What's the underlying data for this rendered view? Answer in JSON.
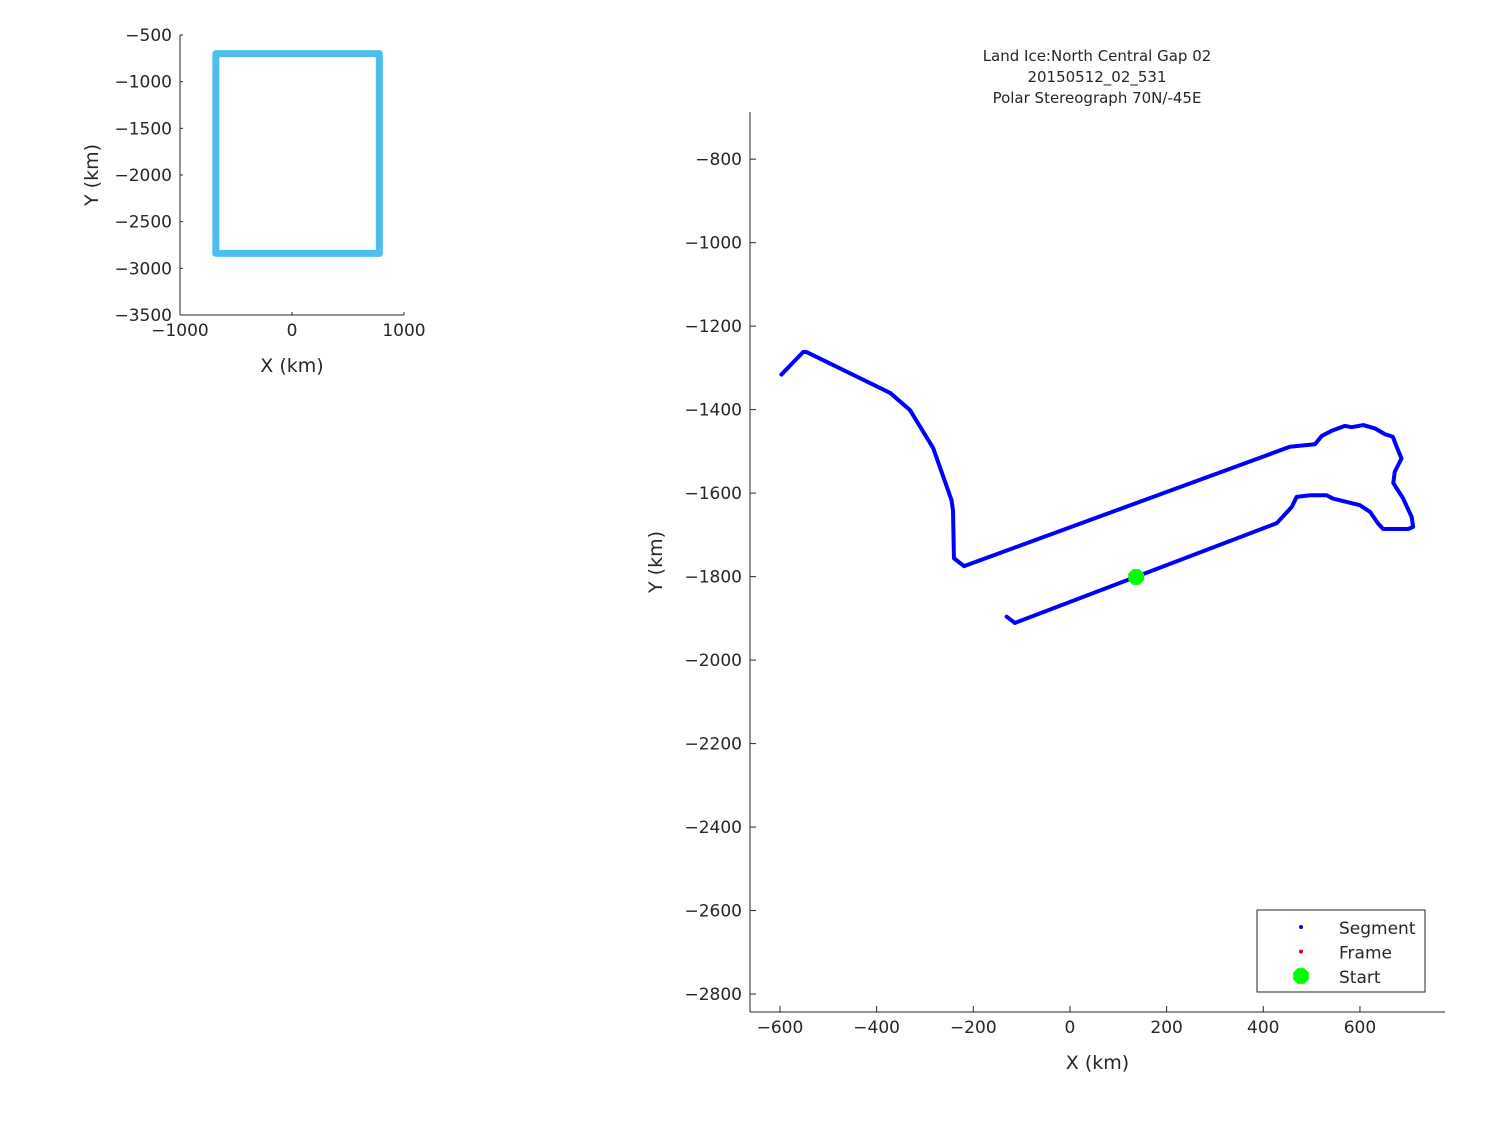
{
  "chart_data": [
    {
      "type": "line",
      "xlabel": "X (km)",
      "ylabel": "Y (km)",
      "xlim": [
        -1000,
        1000
      ],
      "ylim": [
        -3500,
        -500
      ],
      "xticks": [
        -1000,
        0,
        1000
      ],
      "yticks": [
        -500,
        -1000,
        -1500,
        -2000,
        -2500,
        -3000,
        -3500
      ],
      "grid": false,
      "series": [
        {
          "color": "#4DBEEE",
          "x": [
            -680,
            780,
            780,
            -680,
            -680
          ],
          "y": [
            -700,
            -700,
            -2840,
            -2840,
            -700
          ]
        }
      ]
    },
    {
      "type": "line",
      "title": [
        "Land Ice:North Central Gap 02",
        "20150512_02_531",
        "Polar Stereograph 70N/-45E"
      ],
      "xlabel": "X (km)",
      "ylabel": "Y (km)",
      "xlim": [
        -662,
        776
      ],
      "ylim": [
        -2843,
        -687
      ],
      "xticks": [
        -600,
        -400,
        -200,
        0,
        200,
        400,
        600
      ],
      "yticks": [
        -800,
        -1000,
        -1200,
        -1400,
        -1600,
        -1800,
        -2000,
        -2200,
        -2400,
        -2600,
        -2800
      ],
      "grid": false,
      "legend_position": "bottom-right",
      "legend": [
        {
          "label": "Segment",
          "color": "#0000CC",
          "marker": "dot"
        },
        {
          "label": "Frame",
          "color": "#E00000",
          "marker": "dot"
        },
        {
          "label": "Start",
          "color": "#00FF00",
          "marker": "x-filled"
        }
      ],
      "series": [
        {
          "color": "#0000FF",
          "x": [
            -597,
            -552,
            -545,
            -372,
            -331,
            -283,
            -245,
            -242,
            -240,
            -219,
            455,
            507,
            521,
            541,
            569,
            583,
            607,
            631,
            652,
            668,
            676,
            686,
            672,
            669,
            689,
            707,
            710,
            700,
            648,
            637,
            621,
            600,
            544,
            531,
            497,
            469,
            459,
            428,
            -114,
            -131
          ],
          "y": [
            -1316,
            -1262,
            -1262,
            -1360,
            -1401,
            -1492,
            -1617,
            -1641,
            -1756,
            -1775,
            -1489,
            -1483,
            -1463,
            -1451,
            -1439,
            -1442,
            -1437,
            -1445,
            -1459,
            -1465,
            -1489,
            -1517,
            -1549,
            -1576,
            -1612,
            -1657,
            -1681,
            -1686,
            -1686,
            -1672,
            -1645,
            -1629,
            -1613,
            -1605,
            -1605,
            -1609,
            -1633,
            -1672,
            -1911,
            -1896
          ]
        }
      ],
      "start_point": {
        "x": 137,
        "y": -1801
      }
    }
  ]
}
